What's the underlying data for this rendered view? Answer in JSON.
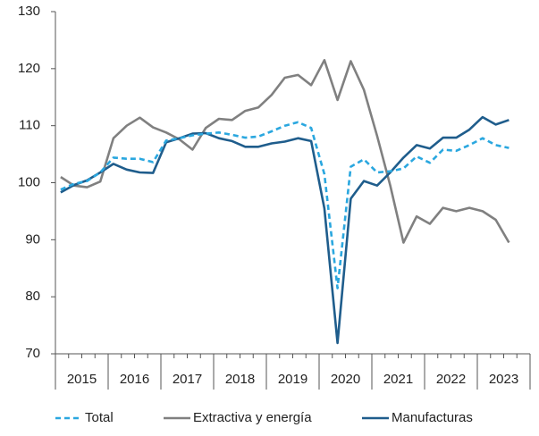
{
  "chart_data": {
    "type": "line",
    "year_labels": [
      "2015",
      "2016",
      "2017",
      "2018",
      "2019",
      "2020",
      "2021",
      "2022",
      "2023"
    ],
    "series": [
      {
        "name": "Total",
        "color": "#2aa7df",
        "dashed": true,
        "values": [
          98.8,
          99.8,
          100.3,
          101.8,
          104.4,
          104.2,
          104.2,
          103.6,
          107.4,
          107.8,
          108.3,
          108.6,
          108.8,
          108.4,
          107.9,
          108.1,
          109.0,
          110.0,
          110.6,
          109.6,
          101.5,
          81.5,
          102.8,
          104.1,
          101.8,
          102.0,
          102.5,
          104.6,
          103.5,
          105.8,
          105.6,
          106.6,
          107.8,
          106.6,
          106.1
        ]
      },
      {
        "name": "Extractiva y energía",
        "color": "#808080",
        "dashed": false,
        "values": [
          101.0,
          99.5,
          99.2,
          100.2,
          107.8,
          110.0,
          111.4,
          109.7,
          108.8,
          107.6,
          105.8,
          109.6,
          111.2,
          111.0,
          112.6,
          113.2,
          115.4,
          118.4,
          118.9,
          117.1,
          121.5,
          114.5,
          121.3,
          116.3,
          108.2,
          99.5,
          89.5,
          94.1,
          92.8,
          95.6,
          95.0,
          95.6,
          95.0,
          93.5,
          89.5
        ]
      },
      {
        "name": "Manufacturas",
        "color": "#1f5d8c",
        "dashed": false,
        "values": [
          98.3,
          99.6,
          100.4,
          101.8,
          103.3,
          102.3,
          101.8,
          101.7,
          107.1,
          107.8,
          108.6,
          108.7,
          107.8,
          107.3,
          106.3,
          106.3,
          106.9,
          107.2,
          107.8,
          107.3,
          95.5,
          71.9,
          97.2,
          100.3,
          99.5,
          101.8,
          104.4,
          106.6,
          106.0,
          107.9,
          107.9,
          109.3,
          111.5,
          110.2,
          111.0
        ]
      }
    ],
    "ylim": [
      70,
      130
    ],
    "yticks": [
      70,
      80,
      90,
      100,
      110,
      120,
      130
    ],
    "legend": "bottom"
  }
}
